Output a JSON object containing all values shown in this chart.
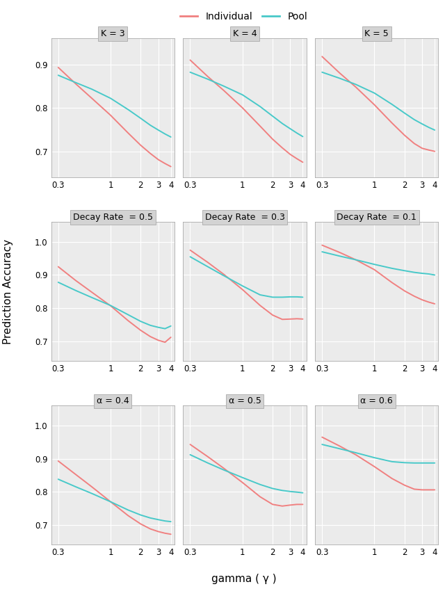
{
  "legend_individual_color": "#F08080",
  "legend_pool_color": "#48C9C9",
  "background_color": "#EBEBEB",
  "grid_color": "#FFFFFF",
  "title_bg_color": "#D3D3D3",
  "figure_bg_color": "#FFFFFF",
  "row_titles": [
    [
      "K = 3",
      "K = 4",
      "K = 5"
    ],
    [
      "Decay Rate  = 0.5",
      "Decay Rate  = 0.3",
      "Decay Rate  = 0.1"
    ],
    [
      "α = 0.4",
      "α = 0.5",
      "α = 0.6"
    ]
  ],
  "ylabel": "Prediction Accuracy",
  "xlabel": "gamma ( γ )",
  "subplot_data": [
    {
      "individual_y": [
        0.893,
        0.855,
        0.822,
        0.783,
        0.742,
        0.714,
        0.695,
        0.681,
        0.672,
        0.665
      ],
      "pool_y": [
        0.875,
        0.858,
        0.843,
        0.822,
        0.796,
        0.776,
        0.76,
        0.749,
        0.74,
        0.733
      ],
      "ylim": [
        0.64,
        0.96
      ],
      "yticks": [
        0.7,
        0.8,
        0.9
      ]
    },
    {
      "individual_y": [
        0.91,
        0.872,
        0.84,
        0.8,
        0.758,
        0.728,
        0.708,
        0.693,
        0.683,
        0.675
      ],
      "pool_y": [
        0.882,
        0.866,
        0.85,
        0.83,
        0.803,
        0.781,
        0.764,
        0.752,
        0.742,
        0.734
      ],
      "ylim": [
        0.64,
        0.96
      ],
      "yticks": [
        0.7,
        0.8,
        0.9
      ]
    },
    {
      "individual_y": [
        0.918,
        0.88,
        0.848,
        0.807,
        0.765,
        0.737,
        0.718,
        0.707,
        0.703,
        0.7
      ],
      "pool_y": [
        0.882,
        0.868,
        0.854,
        0.834,
        0.808,
        0.788,
        0.773,
        0.763,
        0.755,
        0.749
      ],
      "ylim": [
        0.64,
        0.96
      ],
      "yticks": [
        0.7,
        0.8,
        0.9
      ]
    },
    {
      "individual_y": [
        0.925,
        0.883,
        0.848,
        0.807,
        0.762,
        0.733,
        0.714,
        0.703,
        0.697,
        0.712
      ],
      "pool_y": [
        0.878,
        0.853,
        0.832,
        0.808,
        0.78,
        0.76,
        0.748,
        0.742,
        0.738,
        0.746
      ],
      "ylim": [
        0.64,
        1.06
      ],
      "yticks": [
        0.7,
        0.8,
        0.9,
        1.0
      ]
    },
    {
      "individual_y": [
        0.975,
        0.938,
        0.902,
        0.856,
        0.808,
        0.779,
        0.766,
        0.767,
        0.768,
        0.767
      ],
      "pool_y": [
        0.955,
        0.925,
        0.898,
        0.867,
        0.84,
        0.833,
        0.833,
        0.834,
        0.834,
        0.833
      ],
      "ylim": [
        0.64,
        1.06
      ],
      "yticks": [
        0.7,
        0.8,
        0.9,
        1.0
      ]
    },
    {
      "individual_y": [
        0.99,
        0.968,
        0.946,
        0.916,
        0.877,
        0.852,
        0.836,
        0.825,
        0.818,
        0.813
      ],
      "pool_y": [
        0.97,
        0.957,
        0.946,
        0.932,
        0.92,
        0.913,
        0.908,
        0.905,
        0.903,
        0.9
      ],
      "ylim": [
        0.64,
        1.06
      ],
      "yticks": [
        0.7,
        0.8,
        0.9,
        1.0
      ]
    },
    {
      "individual_y": [
        0.893,
        0.852,
        0.815,
        0.77,
        0.728,
        0.703,
        0.688,
        0.68,
        0.675,
        0.672
      ],
      "pool_y": [
        0.838,
        0.815,
        0.795,
        0.77,
        0.745,
        0.73,
        0.721,
        0.716,
        0.712,
        0.71
      ],
      "ylim": [
        0.64,
        1.06
      ],
      "yticks": [
        0.7,
        0.8,
        0.9,
        1.0
      ]
    },
    {
      "individual_y": [
        0.943,
        0.906,
        0.871,
        0.828,
        0.785,
        0.762,
        0.757,
        0.76,
        0.762,
        0.762
      ],
      "pool_y": [
        0.912,
        0.887,
        0.866,
        0.843,
        0.822,
        0.81,
        0.804,
        0.801,
        0.799,
        0.797
      ],
      "ylim": [
        0.64,
        1.06
      ],
      "yticks": [
        0.7,
        0.8,
        0.9,
        1.0
      ]
    },
    {
      "individual_y": [
        0.965,
        0.938,
        0.912,
        0.876,
        0.84,
        0.82,
        0.808,
        0.806,
        0.806,
        0.806
      ],
      "pool_y": [
        0.943,
        0.93,
        0.918,
        0.903,
        0.891,
        0.888,
        0.887,
        0.887,
        0.887,
        0.887
      ],
      "ylim": [
        0.64,
        1.06
      ],
      "yticks": [
        0.7,
        0.8,
        0.9,
        1.0
      ]
    }
  ],
  "x_points": [
    0.3,
    0.45,
    0.65,
    1.0,
    1.5,
    2.0,
    2.5,
    3.0,
    3.5,
    4.0
  ],
  "individual_color": "#F08080",
  "pool_color": "#48C9C9",
  "line_width": 1.4
}
